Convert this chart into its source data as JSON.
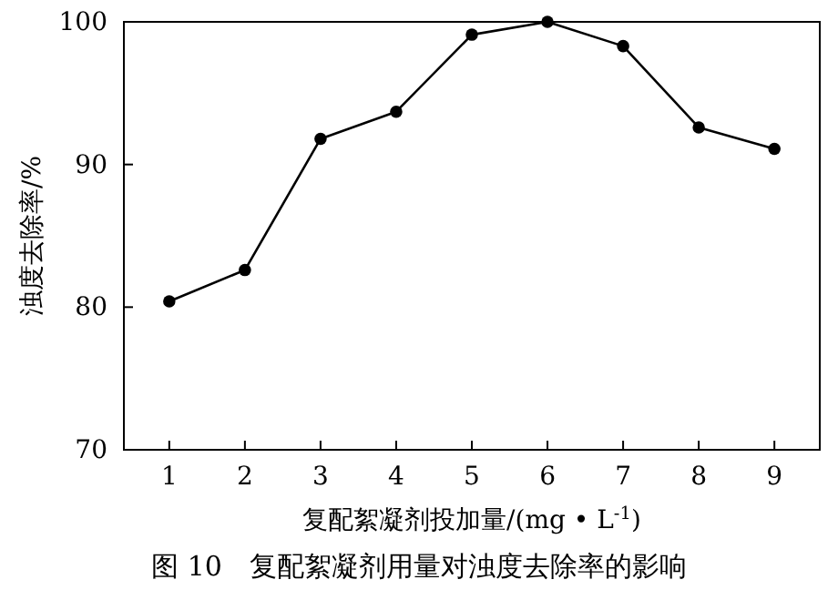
{
  "chart_data": {
    "type": "line",
    "title": "图 10　复配絮凝剂用量对浊度去除率的影响",
    "xlabel": "复配絮凝剂投加量/(mg • L$^{-1}$)",
    "ylabel": "浊度去除率/%",
    "x": [
      1,
      2,
      3,
      4,
      5,
      6,
      7,
      8,
      9
    ],
    "series": [
      {
        "color": "#000000",
        "values": [
          80.4,
          82.6,
          91.8,
          93.7,
          99.1,
          100,
          98.3,
          92.6,
          91.1
        ]
      }
    ],
    "xlim": [
      0.4,
      9.6
    ],
    "xticks": [
      1,
      2,
      3,
      4,
      5,
      6,
      7,
      8,
      9
    ],
    "ylim": [
      70,
      100
    ],
    "yticks": [
      70,
      80,
      90,
      100
    ],
    "marker": "circle",
    "line_style": "solid",
    "grid": false
  }
}
